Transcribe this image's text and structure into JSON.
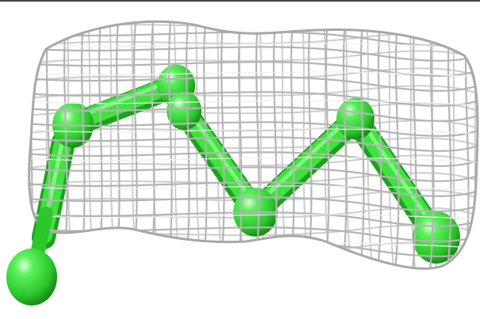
{
  "scene": {
    "kind": "electron-density-mesh-with-ligand",
    "mesh_color": "#b9b9b9",
    "mesh_highlight": "#e6e6e6",
    "ligand_color": "#3fe23f",
    "ligand_shadow": "#1f9a1f",
    "ligand_highlight": "#b6ffb6",
    "background": "#ffffff"
  }
}
